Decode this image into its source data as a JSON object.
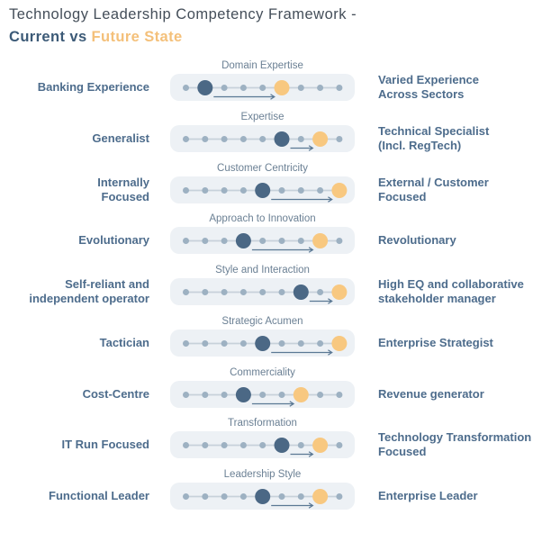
{
  "header": {
    "title": "Technology Leadership Competency Framework -",
    "subtitle_current": "Current vs",
    "subtitle_future": "Future State"
  },
  "scale": {
    "total_dots": 9
  },
  "rows": [
    {
      "category": "Domain Expertise",
      "left_label": "Banking Experience",
      "right_label": "Varied Experience\nAcross Sectors",
      "current_dot_index": 1,
      "future_dot_index": 5
    },
    {
      "category": "Expertise",
      "left_label": "Generalist",
      "right_label": "Technical Specialist\n(Incl. RegTech)",
      "current_dot_index": 5,
      "future_dot_index": 7
    },
    {
      "category": "Customer Centricity",
      "left_label": "Internally\nFocused",
      "right_label": "External / Customer\nFocused",
      "current_dot_index": 4,
      "future_dot_index": 8
    },
    {
      "category": "Approach to Innovation",
      "left_label": "Evolutionary",
      "right_label": "Revolutionary",
      "current_dot_index": 3,
      "future_dot_index": 7
    },
    {
      "category": "Style and Interaction",
      "left_label": "Self-reliant and\nindependent operator",
      "right_label": "High EQ and collaborative\nstakeholder manager",
      "current_dot_index": 6,
      "future_dot_index": 8
    },
    {
      "category": "Strategic Acumen",
      "left_label": "Tactician",
      "right_label": "Enterprise Strategist",
      "current_dot_index": 4,
      "future_dot_index": 8
    },
    {
      "category": "Commerciality",
      "left_label": "Cost-Centre",
      "right_label": "Revenue generator",
      "current_dot_index": 3,
      "future_dot_index": 6
    },
    {
      "category": "Transformation",
      "left_label": "IT Run Focused",
      "right_label": "Technology Transformation\nFocused",
      "current_dot_index": 5,
      "future_dot_index": 7
    },
    {
      "category": "Leadership Style",
      "left_label": "Functional Leader",
      "right_label": "Enterprise Leader",
      "current_dot_index": 4,
      "future_dot_index": 7
    }
  ],
  "colors": {
    "title_text": "#444e59",
    "subtitle_current": "#3c5a77",
    "subtitle_future": "#f4c07a",
    "label_text": "#4d6c8c",
    "category_text": "#6b8094",
    "track_bg": "#edf1f5",
    "scale_dot": "#9db1c2",
    "connector_line": "#c7d1da",
    "current_dot": "#4b6885",
    "future_dot": "#f8c880",
    "arrow": "#5a7894"
  }
}
